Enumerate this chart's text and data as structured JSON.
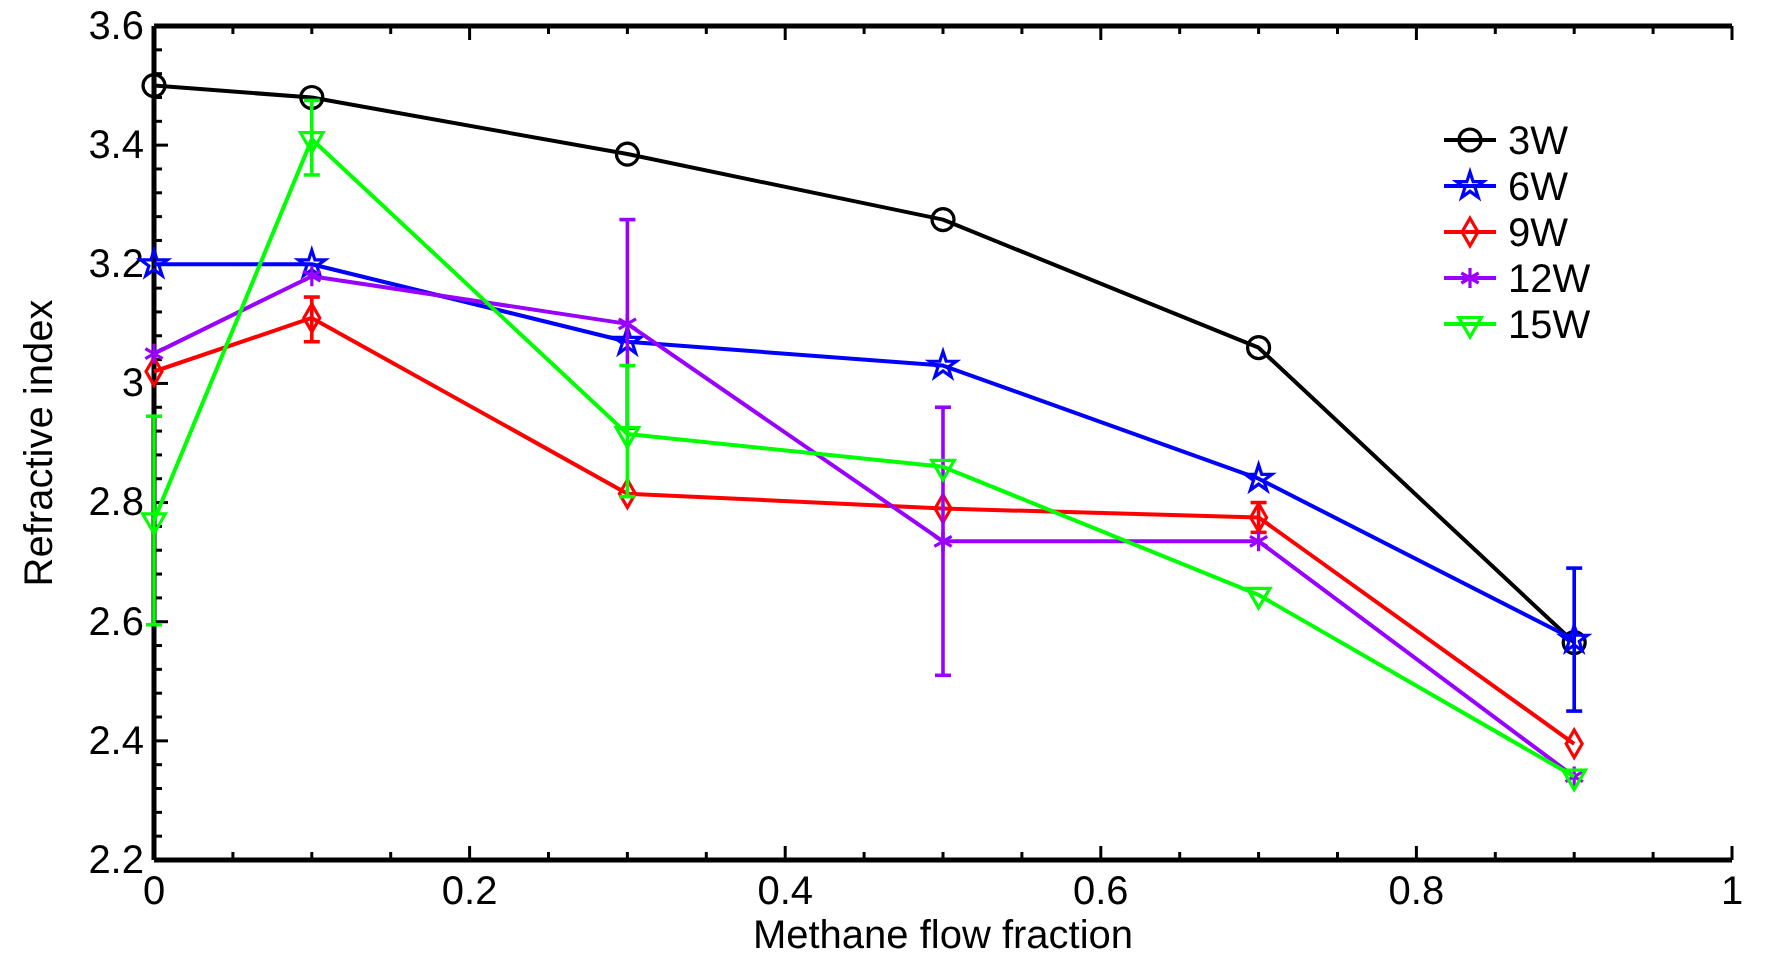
{
  "chart_data": {
    "type": "line",
    "xlabel": "Methane flow fraction",
    "ylabel": "Refractive index",
    "x": [
      0,
      0.1,
      0.3,
      0.5,
      0.7,
      0.9
    ],
    "xlim": [
      0,
      1
    ],
    "ylim": [
      2.2,
      3.6
    ],
    "xticks": [
      0,
      {
        "value": 0.05,
        "label": null
      },
      {
        "value": 0.1,
        "label": null
      },
      {
        "value": 0.15,
        "label": null
      },
      0.2,
      {
        "value": 0.25,
        "label": null
      },
      {
        "value": 0.3,
        "label": null
      },
      {
        "value": 0.35,
        "label": null
      },
      0.4,
      {
        "value": 0.45,
        "label": null
      },
      {
        "value": 0.5,
        "label": null
      },
      {
        "value": 0.55,
        "label": null
      },
      0.6,
      {
        "value": 0.65,
        "label": null
      },
      {
        "value": 0.7,
        "label": null
      },
      {
        "value": 0.75,
        "label": null
      },
      0.8,
      {
        "value": 0.85,
        "label": null
      },
      {
        "value": 0.9,
        "label": null
      },
      {
        "value": 0.95,
        "label": null
      },
      1
    ],
    "yticks": [
      2.2,
      {
        "value": 2.24,
        "label": null
      },
      {
        "value": 2.28,
        "label": null
      },
      {
        "value": 2.32,
        "label": null
      },
      {
        "value": 2.36,
        "label": null
      },
      2.4,
      {
        "value": 2.44,
        "label": null
      },
      {
        "value": 2.48,
        "label": null
      },
      {
        "value": 2.52,
        "label": null
      },
      {
        "value": 2.56,
        "label": null
      },
      2.6,
      {
        "value": 2.64,
        "label": null
      },
      {
        "value": 2.68,
        "label": null
      },
      {
        "value": 2.72,
        "label": null
      },
      {
        "value": 2.76,
        "label": null
      },
      2.8,
      {
        "value": 2.84,
        "label": null
      },
      {
        "value": 2.88,
        "label": null
      },
      {
        "value": 2.92,
        "label": null
      },
      {
        "value": 2.96,
        "label": null
      },
      3,
      {
        "value": 3.04,
        "label": null
      },
      {
        "value": 3.08,
        "label": null
      },
      {
        "value": 3.12,
        "label": null
      },
      {
        "value": 3.16,
        "label": null
      },
      3.2,
      {
        "value": 3.24,
        "label": null
      },
      {
        "value": 3.28,
        "label": null
      },
      {
        "value": 3.32,
        "label": null
      },
      {
        "value": 3.36,
        "label": null
      },
      3.4,
      {
        "value": 3.44,
        "label": null
      },
      {
        "value": 3.48,
        "label": null
      },
      {
        "value": 3.52,
        "label": null
      },
      {
        "value": 3.56,
        "label": null
      },
      3.6
    ],
    "grid": false,
    "legend": "top right",
    "line_style": "solid",
    "series": [
      {
        "name": "3W",
        "color": "#000000",
        "marker": "circle",
        "values": [
          3.5,
          3.48,
          3.385,
          3.275,
          3.06,
          2.565
        ]
      },
      {
        "name": "6W",
        "color": "#0000ff",
        "marker": "star",
        "values": [
          3.2,
          3.2,
          3.07,
          3.03,
          2.84,
          2.57
        ],
        "errors": [
          null,
          null,
          null,
          null,
          null,
          0.12
        ]
      },
      {
        "name": "9W",
        "color": "#ff0000",
        "marker": "diamond",
        "values": [
          3.02,
          3.11,
          2.815,
          2.79,
          2.775,
          2.395
        ],
        "errors": [
          null,
          [
            3.07,
            3.145
          ],
          null,
          null,
          [
            2.75,
            2.8
          ],
          null
        ]
      },
      {
        "name": "12W",
        "color": "#9900ff",
        "marker": "cross",
        "values": [
          3.05,
          3.18,
          3.1,
          2.735,
          2.735,
          2.34
        ],
        "errors": [
          null,
          null,
          0.175,
          0.225,
          null,
          null
        ]
      },
      {
        "name": "15W",
        "color": "#00ff00",
        "marker": "triangle",
        "values": [
          2.77,
          3.41,
          2.915,
          2.86,
          2.645,
          2.34
        ],
        "errors": [
          0.175,
          [
            3.35,
            3.475
          ],
          [
            2.81,
            3.03
          ],
          null,
          null,
          null
        ]
      }
    ]
  }
}
